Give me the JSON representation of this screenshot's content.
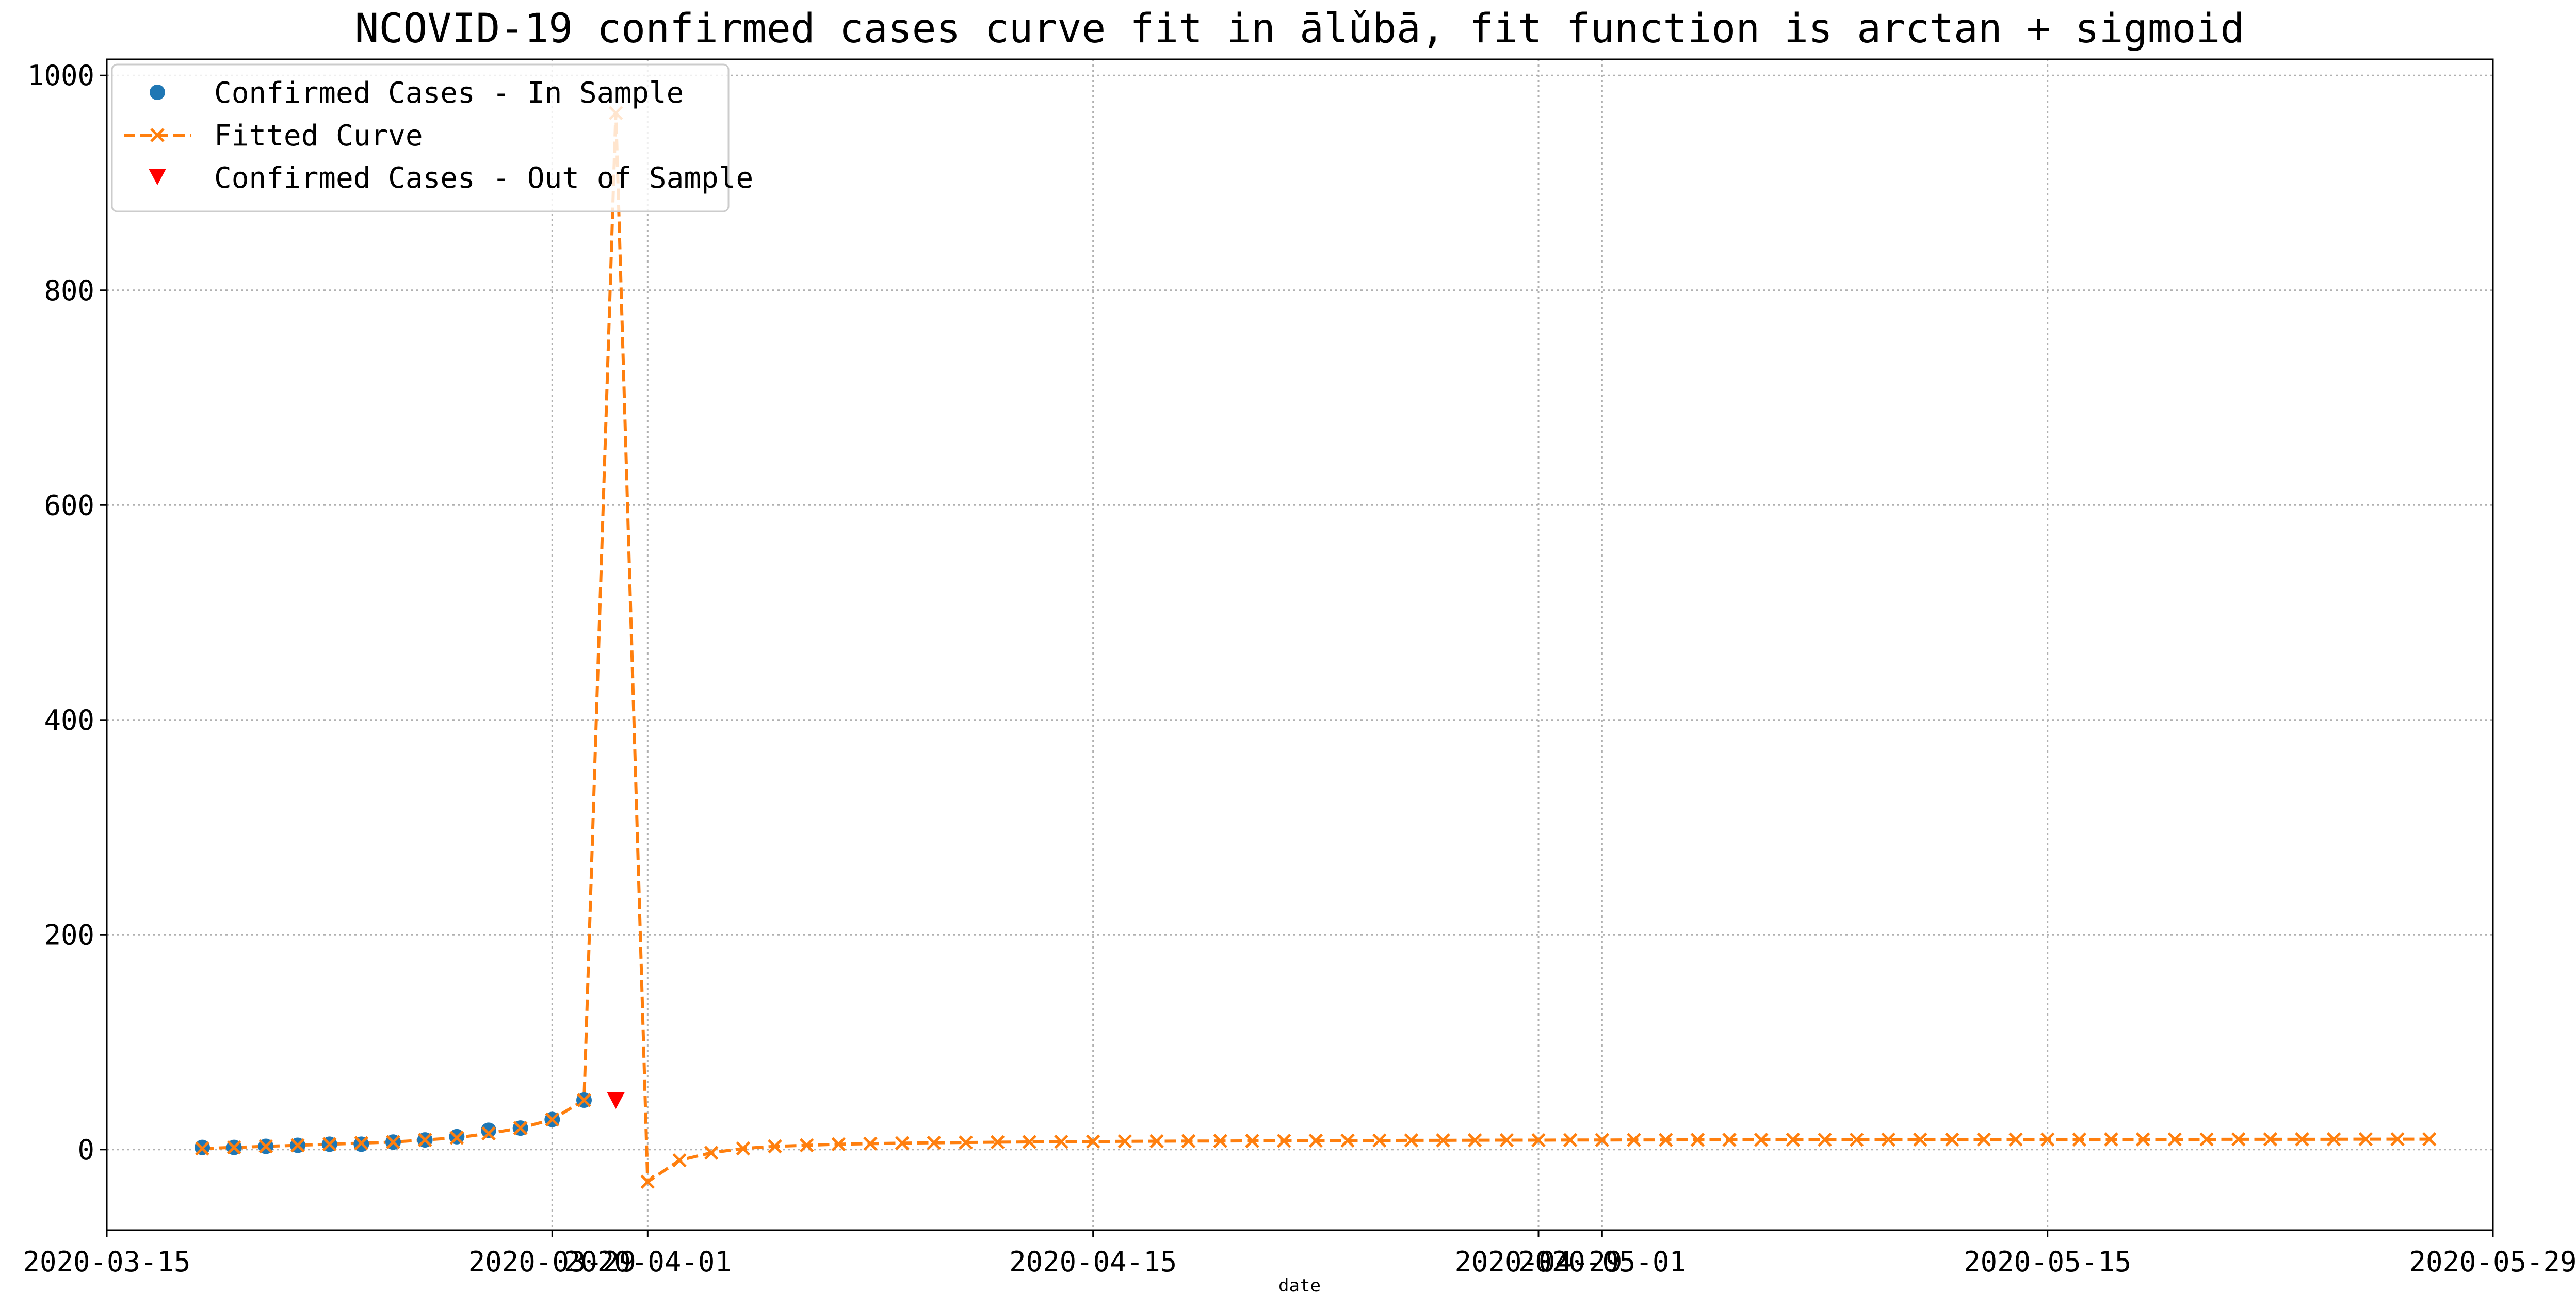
{
  "chart_data": {
    "type": "line",
    "title": "NCOVID-19 confirmed cases curve fit in ālǔbā, fit function is arctan + sigmoid",
    "xlabel": "date",
    "ylabel": "",
    "xlim": [
      "2020-03-15",
      "2020-05-29"
    ],
    "ylim": [
      -75,
      1015
    ],
    "x_ticks": [
      "2020-03-15",
      "2020-03-29",
      "2020-04-01",
      "2020-04-15",
      "2020-04-29",
      "2020-05-01",
      "2020-05-15",
      "2020-05-29"
    ],
    "y_ticks": [
      0,
      200,
      400,
      600,
      800,
      1000
    ],
    "grid": true,
    "legend_position": "top-left",
    "series": [
      {
        "name": "Confirmed Cases - In Sample",
        "marker": "circle",
        "color": "#1f77b4",
        "x": [
          "2020-03-18",
          "2020-03-19",
          "2020-03-20",
          "2020-03-21",
          "2020-03-22",
          "2020-03-23",
          "2020-03-24",
          "2020-03-25",
          "2020-03-26",
          "2020-03-27",
          "2020-03-28",
          "2020-03-29",
          "2020-03-30"
        ],
        "y": [
          2,
          2,
          3,
          4,
          5,
          5,
          7,
          9,
          12,
          18,
          20,
          28,
          46
        ]
      },
      {
        "name": "Fitted Curve",
        "marker": "x",
        "line": "dashed",
        "color": "#ff7f0e",
        "x": [
          "2020-03-18",
          "2020-03-19",
          "2020-03-20",
          "2020-03-21",
          "2020-03-22",
          "2020-03-23",
          "2020-03-24",
          "2020-03-25",
          "2020-03-26",
          "2020-03-27",
          "2020-03-28",
          "2020-03-29",
          "2020-03-30",
          "2020-03-31",
          "2020-04-01",
          "2020-04-02",
          "2020-04-03",
          "2020-04-04",
          "2020-04-05",
          "2020-04-06",
          "2020-04-07",
          "2020-04-08",
          "2020-04-09",
          "2020-04-10",
          "2020-04-11",
          "2020-04-12",
          "2020-04-13",
          "2020-04-14",
          "2020-04-15",
          "2020-04-16",
          "2020-04-17",
          "2020-04-18",
          "2020-04-19",
          "2020-04-20",
          "2020-04-21",
          "2020-04-22",
          "2020-04-23",
          "2020-04-24",
          "2020-04-25",
          "2020-04-26",
          "2020-04-27",
          "2020-04-28",
          "2020-04-29",
          "2020-04-30",
          "2020-05-01",
          "2020-05-02",
          "2020-05-03",
          "2020-05-04",
          "2020-05-05",
          "2020-05-06",
          "2020-05-07",
          "2020-05-08",
          "2020-05-09",
          "2020-05-10",
          "2020-05-11",
          "2020-05-12",
          "2020-05-13",
          "2020-05-14",
          "2020-05-15",
          "2020-05-16",
          "2020-05-17",
          "2020-05-18",
          "2020-05-19",
          "2020-05-20",
          "2020-05-21",
          "2020-05-22",
          "2020-05-23",
          "2020-05-24",
          "2020-05-25",
          "2020-05-26",
          "2020-05-27"
        ],
        "y": [
          1,
          2,
          3,
          4,
          5,
          6,
          7,
          9,
          11,
          15,
          20,
          28,
          46,
          965,
          -30,
          -10,
          -3,
          1,
          3,
          4,
          5,
          5.5,
          6,
          6.3,
          6.6,
          6.9,
          7.1,
          7.3,
          7.5,
          7.7,
          7.8,
          7.9,
          8.0,
          8.1,
          8.2,
          8.3,
          8.4,
          8.5,
          8.6,
          8.6,
          8.7,
          8.8,
          8.8,
          8.9,
          8.9,
          9.0,
          9.0,
          9.1,
          9.1,
          9.1,
          9.2,
          9.2,
          9.2,
          9.3,
          9.3,
          9.3,
          9.4,
          9.4,
          9.4,
          9.4,
          9.5,
          9.5,
          9.5,
          9.5,
          9.6,
          9.6,
          9.6,
          9.6,
          9.7,
          9.7,
          9.7
        ]
      },
      {
        "name": "Confirmed Cases - Out of Sample",
        "marker": "triangle-down",
        "color": "#ff0000",
        "x": [
          "2020-03-31"
        ],
        "y": [
          46
        ]
      }
    ]
  }
}
